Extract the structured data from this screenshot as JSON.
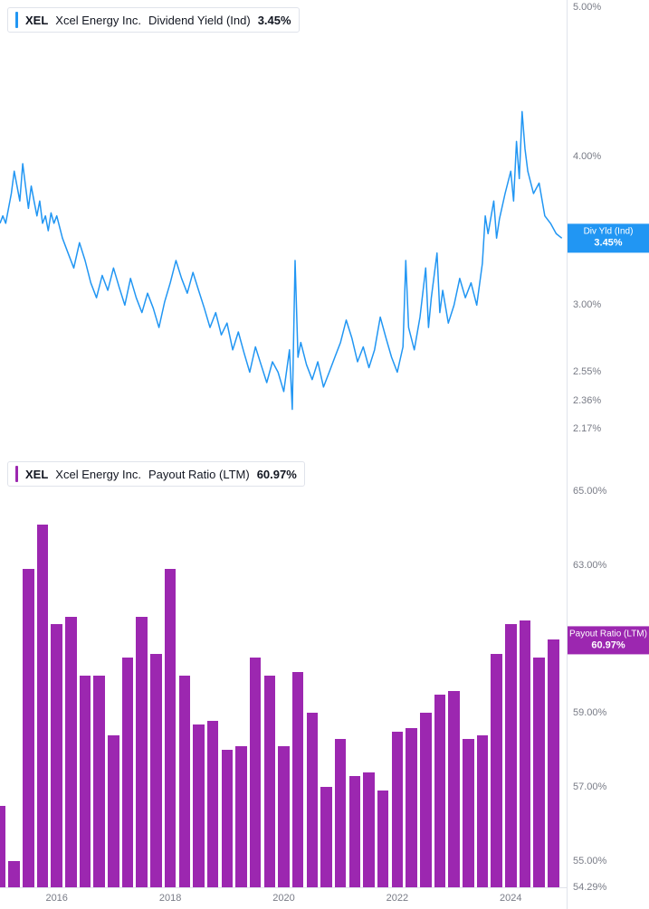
{
  "top_chart": {
    "type": "line",
    "legend": {
      "ticker": "XEL",
      "name": "Xcel Energy Inc.",
      "metric": "Dividend Yield (Ind)",
      "value": "3.45%",
      "bar_color": "#2196f3"
    },
    "line_color": "#2196f3",
    "line_width": 1.5,
    "background_color": "#ffffff",
    "y_axis": {
      "min": 2.0,
      "max": 5.05,
      "ticks": [
        {
          "v": 5.0,
          "label": "5.00%"
        },
        {
          "v": 4.0,
          "label": "4.00%"
        },
        {
          "v": 3.0,
          "label": "3.00%"
        },
        {
          "v": 2.55,
          "label": "2.55%"
        },
        {
          "v": 2.36,
          "label": "2.36%"
        },
        {
          "v": 2.17,
          "label": "2.17%"
        }
      ],
      "badge": {
        "label": "Div Yld (Ind)",
        "value": "3.45%",
        "at": 3.45,
        "bg": "#2196f3"
      }
    },
    "x_range": [
      2015.0,
      2025.0
    ],
    "series": [
      [
        2015.0,
        3.55
      ],
      [
        2015.05,
        3.6
      ],
      [
        2015.1,
        3.55
      ],
      [
        2015.15,
        3.65
      ],
      [
        2015.2,
        3.75
      ],
      [
        2015.25,
        3.9
      ],
      [
        2015.3,
        3.8
      ],
      [
        2015.35,
        3.7
      ],
      [
        2015.4,
        3.95
      ],
      [
        2015.45,
        3.8
      ],
      [
        2015.5,
        3.65
      ],
      [
        2015.55,
        3.8
      ],
      [
        2015.6,
        3.7
      ],
      [
        2015.65,
        3.6
      ],
      [
        2015.7,
        3.7
      ],
      [
        2015.75,
        3.55
      ],
      [
        2015.8,
        3.6
      ],
      [
        2015.85,
        3.5
      ],
      [
        2015.9,
        3.62
      ],
      [
        2015.95,
        3.55
      ],
      [
        2016.0,
        3.6
      ],
      [
        2016.1,
        3.45
      ],
      [
        2016.2,
        3.35
      ],
      [
        2016.3,
        3.25
      ],
      [
        2016.4,
        3.42
      ],
      [
        2016.5,
        3.3
      ],
      [
        2016.6,
        3.15
      ],
      [
        2016.7,
        3.05
      ],
      [
        2016.8,
        3.2
      ],
      [
        2016.9,
        3.1
      ],
      [
        2017.0,
        3.25
      ],
      [
        2017.1,
        3.12
      ],
      [
        2017.2,
        3.0
      ],
      [
        2017.3,
        3.18
      ],
      [
        2017.4,
        3.05
      ],
      [
        2017.5,
        2.95
      ],
      [
        2017.6,
        3.08
      ],
      [
        2017.7,
        2.98
      ],
      [
        2017.8,
        2.85
      ],
      [
        2017.9,
        3.02
      ],
      [
        2018.0,
        3.15
      ],
      [
        2018.1,
        3.3
      ],
      [
        2018.2,
        3.18
      ],
      [
        2018.3,
        3.08
      ],
      [
        2018.4,
        3.22
      ],
      [
        2018.5,
        3.1
      ],
      [
        2018.6,
        2.98
      ],
      [
        2018.7,
        2.85
      ],
      [
        2018.8,
        2.95
      ],
      [
        2018.9,
        2.8
      ],
      [
        2019.0,
        2.88
      ],
      [
        2019.1,
        2.7
      ],
      [
        2019.2,
        2.82
      ],
      [
        2019.3,
        2.68
      ],
      [
        2019.4,
        2.55
      ],
      [
        2019.5,
        2.72
      ],
      [
        2019.6,
        2.6
      ],
      [
        2019.7,
        2.48
      ],
      [
        2019.8,
        2.62
      ],
      [
        2019.9,
        2.55
      ],
      [
        2020.0,
        2.42
      ],
      [
        2020.1,
        2.7
      ],
      [
        2020.15,
        2.3
      ],
      [
        2020.2,
        3.3
      ],
      [
        2020.25,
        2.65
      ],
      [
        2020.3,
        2.75
      ],
      [
        2020.4,
        2.6
      ],
      [
        2020.5,
        2.5
      ],
      [
        2020.6,
        2.62
      ],
      [
        2020.7,
        2.45
      ],
      [
        2020.8,
        2.55
      ],
      [
        2020.9,
        2.65
      ],
      [
        2021.0,
        2.75
      ],
      [
        2021.1,
        2.9
      ],
      [
        2021.2,
        2.78
      ],
      [
        2021.3,
        2.62
      ],
      [
        2021.4,
        2.72
      ],
      [
        2021.5,
        2.58
      ],
      [
        2021.6,
        2.7
      ],
      [
        2021.7,
        2.92
      ],
      [
        2021.8,
        2.78
      ],
      [
        2021.9,
        2.65
      ],
      [
        2022.0,
        2.55
      ],
      [
        2022.1,
        2.72
      ],
      [
        2022.15,
        3.3
      ],
      [
        2022.2,
        2.85
      ],
      [
        2022.3,
        2.7
      ],
      [
        2022.4,
        2.92
      ],
      [
        2022.5,
        3.25
      ],
      [
        2022.55,
        2.85
      ],
      [
        2022.6,
        3.05
      ],
      [
        2022.7,
        3.35
      ],
      [
        2022.75,
        2.95
      ],
      [
        2022.8,
        3.1
      ],
      [
        2022.9,
        2.88
      ],
      [
        2023.0,
        3.0
      ],
      [
        2023.1,
        3.18
      ],
      [
        2023.2,
        3.05
      ],
      [
        2023.3,
        3.15
      ],
      [
        2023.4,
        3.0
      ],
      [
        2023.5,
        3.28
      ],
      [
        2023.55,
        3.6
      ],
      [
        2023.6,
        3.48
      ],
      [
        2023.7,
        3.7
      ],
      [
        2023.75,
        3.45
      ],
      [
        2023.8,
        3.58
      ],
      [
        2023.9,
        3.75
      ],
      [
        2024.0,
        3.9
      ],
      [
        2024.05,
        3.7
      ],
      [
        2024.1,
        4.1
      ],
      [
        2024.15,
        3.85
      ],
      [
        2024.2,
        4.3
      ],
      [
        2024.25,
        4.05
      ],
      [
        2024.3,
        3.9
      ],
      [
        2024.4,
        3.75
      ],
      [
        2024.5,
        3.82
      ],
      [
        2024.6,
        3.6
      ],
      [
        2024.7,
        3.55
      ],
      [
        2024.8,
        3.48
      ],
      [
        2024.9,
        3.45
      ]
    ]
  },
  "bottom_chart": {
    "type": "bar",
    "legend": {
      "ticker": "XEL",
      "name": "Xcel Energy Inc.",
      "metric": "Payout Ratio (LTM)",
      "value": "60.97%",
      "bar_color": "#9c27b0"
    },
    "bar_color": "#9c27b0",
    "background_color": "#ffffff",
    "y_axis": {
      "min": 54.29,
      "max": 66.0,
      "ticks": [
        {
          "v": 65.0,
          "label": "65.00%"
        },
        {
          "v": 63.0,
          "label": "63.00%"
        },
        {
          "v": 61.0,
          "label": "61.00%"
        },
        {
          "v": 59.0,
          "label": "59.00%"
        },
        {
          "v": 57.0,
          "label": "57.00%"
        },
        {
          "v": 55.0,
          "label": "55.00%"
        },
        {
          "v": 54.29,
          "label": "54.29%"
        }
      ],
      "badge": {
        "label": "Payout Ratio (LTM)",
        "value": "60.97%",
        "at": 60.97,
        "bg": "#9c27b0"
      }
    },
    "x_axis": {
      "range": [
        2015.0,
        2025.0
      ],
      "ticks": [
        {
          "v": 2016,
          "label": "2016"
        },
        {
          "v": 2018,
          "label": "2018"
        },
        {
          "v": 2020,
          "label": "2020"
        },
        {
          "v": 2022,
          "label": "2022"
        },
        {
          "v": 2024,
          "label": "2024"
        }
      ]
    },
    "bar_width_yr": 0.2,
    "bars": [
      {
        "x": 2015.0,
        "v": 56.5
      },
      {
        "x": 2015.25,
        "v": 55.0
      },
      {
        "x": 2015.5,
        "v": 62.9
      },
      {
        "x": 2015.75,
        "v": 64.1
      },
      {
        "x": 2016.0,
        "v": 61.4
      },
      {
        "x": 2016.25,
        "v": 61.6
      },
      {
        "x": 2016.5,
        "v": 60.0
      },
      {
        "x": 2016.75,
        "v": 60.0
      },
      {
        "x": 2017.0,
        "v": 58.4
      },
      {
        "x": 2017.25,
        "v": 60.5
      },
      {
        "x": 2017.5,
        "v": 61.6
      },
      {
        "x": 2017.75,
        "v": 60.6
      },
      {
        "x": 2018.0,
        "v": 62.9
      },
      {
        "x": 2018.25,
        "v": 60.0
      },
      {
        "x": 2018.5,
        "v": 58.7
      },
      {
        "x": 2018.75,
        "v": 58.8
      },
      {
        "x": 2019.0,
        "v": 58.0
      },
      {
        "x": 2019.25,
        "v": 58.1
      },
      {
        "x": 2019.5,
        "v": 60.5
      },
      {
        "x": 2019.75,
        "v": 60.0
      },
      {
        "x": 2020.0,
        "v": 58.1
      },
      {
        "x": 2020.25,
        "v": 60.1
      },
      {
        "x": 2020.5,
        "v": 59.0
      },
      {
        "x": 2020.75,
        "v": 57.0
      },
      {
        "x": 2021.0,
        "v": 58.3
      },
      {
        "x": 2021.25,
        "v": 57.3
      },
      {
        "x": 2021.5,
        "v": 57.4
      },
      {
        "x": 2021.75,
        "v": 56.9
      },
      {
        "x": 2022.0,
        "v": 58.5
      },
      {
        "x": 2022.25,
        "v": 58.6
      },
      {
        "x": 2022.5,
        "v": 59.0
      },
      {
        "x": 2022.75,
        "v": 59.5
      },
      {
        "x": 2023.0,
        "v": 59.6
      },
      {
        "x": 2023.25,
        "v": 58.3
      },
      {
        "x": 2023.5,
        "v": 58.4
      },
      {
        "x": 2023.75,
        "v": 60.6
      },
      {
        "x": 2024.0,
        "v": 61.4
      },
      {
        "x": 2024.25,
        "v": 61.5
      },
      {
        "x": 2024.5,
        "v": 60.5
      },
      {
        "x": 2024.75,
        "v": 61.0
      }
    ]
  }
}
